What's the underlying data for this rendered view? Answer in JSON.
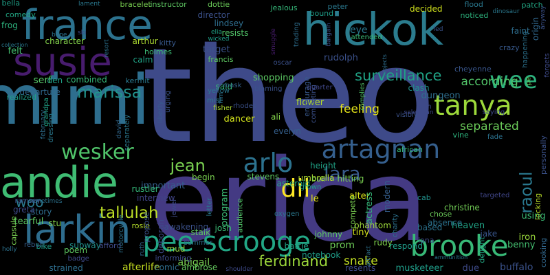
{
  "words": [
    {
      "text": "theo",
      "color": "#3e4a89",
      "rot": 0
    },
    {
      "text": "erica",
      "color": "#443a83",
      "rot": 0
    },
    {
      "text": "hickok",
      "color": "#2b7c8e",
      "rot": 0
    },
    {
      "text": "mimi",
      "color": "#2e6e8e",
      "rot": 0
    },
    {
      "text": "france",
      "color": "#2c728e",
      "rot": 0
    },
    {
      "text": "susie",
      "color": "#481c6e",
      "rot": 0
    },
    {
      "text": "andie",
      "color": "#3fbc73",
      "rot": 0
    },
    {
      "text": "larkin",
      "color": "#2e6d8e",
      "rot": 0
    },
    {
      "text": "pee scrooge",
      "color": "#22a785",
      "rot": 0
    },
    {
      "text": "brooke",
      "color": "#38b977",
      "rot": 0
    },
    {
      "text": "artagnan",
      "color": "#355f8d",
      "rot": 0
    },
    {
      "text": "tanya",
      "color": "#9dd93b",
      "rot": 0
    },
    {
      "text": "arlo",
      "color": "#2c728e",
      "rot": 0
    },
    {
      "text": "lara",
      "color": "#38598c",
      "rot": 0
    },
    {
      "text": "wee",
      "color": "#2db27d",
      "rot": 0
    },
    {
      "text": "dil",
      "color": "#fde725",
      "rot": 0
    },
    {
      "text": "wesker",
      "color": "#50c46a",
      "rot": 0
    },
    {
      "text": "marissa",
      "color": "#21918c",
      "rot": 0
    },
    {
      "text": "tallulah",
      "color": "#bddf26",
      "rot": 0
    },
    {
      "text": "jean",
      "color": "#7ad151",
      "rot": 0
    },
    {
      "text": "ferdinand",
      "color": "#9dd93b",
      "rot": 0
    },
    {
      "text": "surveillance",
      "color": "#20a386",
      "rot": 0
    },
    {
      "text": "raoul",
      "color": "#2a788e",
      "rot": -90
    },
    {
      "text": "woo",
      "color": "#2a788e",
      "rot": 0
    },
    {
      "text": "feeling",
      "color": "#e5e419",
      "rot": 0
    },
    {
      "text": "separated",
      "color": "#6ccd5a",
      "rot": 0
    },
    {
      "text": "according",
      "color": "#52c569",
      "rot": 0
    },
    {
      "text": "snake",
      "color": "#c2df23",
      "rot": 0
    },
    {
      "text": "alter",
      "color": "#d8e219",
      "rot": 0
    },
    {
      "text": "dungeon",
      "color": "#2e6e8e",
      "rot": 0
    },
    {
      "text": "clash",
      "color": "#21918c",
      "rot": 0
    },
    {
      "text": "rudolph",
      "color": "#3b518b",
      "rot": 0
    },
    {
      "text": "program",
      "color": "#3bbb75",
      "rot": -90
    },
    {
      "text": "actress",
      "color": "#35b779",
      "rot": -90
    },
    {
      "text": "flower",
      "color": "#b5de2b",
      "rot": 0
    },
    {
      "text": "shopping",
      "color": "#5cc863",
      "rot": 0
    },
    {
      "text": "said",
      "color": "#35b779",
      "rot": 0
    },
    {
      "text": "important",
      "color": "#355f8d",
      "rot": 0
    },
    {
      "text": "interview",
      "color": "#414487",
      "rot": 0
    },
    {
      "text": "prom",
      "color": "#6ece58",
      "rot": 0
    },
    {
      "text": "serf",
      "color": "#56c667",
      "rot": 0
    },
    {
      "text": "departure",
      "color": "#31688e",
      "rot": 0
    },
    {
      "text": "origin",
      "color": "#31688e",
      "rot": -90
    },
    {
      "text": "cheyenne",
      "color": "#39568c",
      "rot": 0
    },
    {
      "text": "decided",
      "color": "#d0e11c",
      "rot": 0
    },
    {
      "text": "eye",
      "color": "#2a788e",
      "rot": 0
    },
    {
      "text": "target",
      "color": "#3b528b",
      "rot": 0
    },
    {
      "text": "abigail",
      "color": "#7ad151",
      "rot": 0
    },
    {
      "text": "afterlife",
      "color": "#c8e020",
      "rot": 0
    },
    {
      "text": "musketeer",
      "color": "#1f9e89",
      "rot": 0
    },
    {
      "text": "buffalo",
      "color": "#3b528b",
      "rot": 0
    },
    {
      "text": "benny",
      "color": "#44bf70",
      "rot": 0
    },
    {
      "text": "iron",
      "color": "#9bd93c",
      "rot": 0
    },
    {
      "text": "tiny",
      "color": "#d2e21b",
      "rot": 0
    },
    {
      "text": "phantom",
      "color": "#9dd93b",
      "rot": 0
    },
    {
      "text": "heaven",
      "color": "#20a486",
      "rot": 0
    },
    {
      "text": "absence",
      "color": "#2c728e",
      "rot": 0
    },
    {
      "text": "christine",
      "color": "#73d056",
      "rot": 0
    },
    {
      "text": "rustler",
      "color": "#35b779",
      "rot": 0
    },
    {
      "text": "stalk",
      "color": "#5ec962",
      "rot": 0
    },
    {
      "text": "josh",
      "color": "#3bbb75",
      "rot": 0
    },
    {
      "text": "evelyn",
      "color": "#355f8d",
      "rot": 0
    },
    {
      "text": "stevens",
      "color": "#5ec962",
      "rot": 0
    },
    {
      "text": "umbrella",
      "color": "#addc30",
      "rot": 0
    },
    {
      "text": "height",
      "color": "#20a386",
      "rot": 0
    },
    {
      "text": "bull",
      "color": "#84d44b",
      "rot": 0
    },
    {
      "text": "hitting",
      "color": "#7ad151",
      "rot": 0
    },
    {
      "text": "rosie",
      "color": "#b5de2b",
      "rot": 0
    },
    {
      "text": "begin",
      "color": "#7ad151",
      "rot": 0
    },
    {
      "text": "ali",
      "color": "#84d44b",
      "rot": 0
    },
    {
      "text": "dancer",
      "color": "#d2e21b",
      "rot": 0
    },
    {
      "text": "le",
      "color": "#e5e419",
      "rot": 0
    },
    {
      "text": "lana",
      "color": "#3e4c8a",
      "rot": 0
    },
    {
      "text": "rudy",
      "color": "#7fd34e",
      "rot": 0
    },
    {
      "text": "based",
      "color": "#2c728e",
      "rot": 0
    },
    {
      "text": "mud",
      "color": "#93d741",
      "rot": 0
    },
    {
      "text": "comic",
      "color": "#2e6e8e",
      "rot": 0
    },
    {
      "text": "ambrose",
      "color": "#65cb5e",
      "rot": 0
    },
    {
      "text": "poem",
      "color": "#5ec962",
      "rot": 0
    },
    {
      "text": "subway",
      "color": "#21918c",
      "rot": 0
    },
    {
      "text": "bike",
      "color": "#1f9e89",
      "rot": 0
    },
    {
      "text": "afford",
      "color": "#3e4a89",
      "rot": 0
    },
    {
      "text": "notebook",
      "color": "#1f9e89",
      "rot": 0
    },
    {
      "text": "resents",
      "color": "#3e4a89",
      "rot": 0
    },
    {
      "text": "respond",
      "color": "#1f9e89",
      "rot": 0
    },
    {
      "text": "johnny",
      "color": "#5cc863",
      "rot": 0
    },
    {
      "text": "battle",
      "color": "#20a386",
      "rot": 0
    },
    {
      "text": "delight",
      "color": "#22a884",
      "rot": -90
    },
    {
      "text": "jake",
      "color": "#39568c",
      "rot": 0
    },
    {
      "text": "using",
      "color": "#3bbb75",
      "rot": 0
    },
    {
      "text": "cooking",
      "color": "#31688e",
      "rot": -90
    },
    {
      "text": "locking",
      "color": "#b8de29",
      "rot": -90
    },
    {
      "text": "personally",
      "color": "#3b528b",
      "rot": -90
    },
    {
      "text": "targeted",
      "color": "#404688",
      "rot": 0
    },
    {
      "text": "cab",
      "color": "#21918c",
      "rot": 0
    },
    {
      "text": "chose",
      "color": "#6ccd5a",
      "rot": 0
    },
    {
      "text": "vine",
      "color": "#2db27d",
      "rot": 0
    },
    {
      "text": "fade",
      "color": "#2c728e",
      "rot": 0
    },
    {
      "text": "african",
      "color": "#35b779",
      "rot": 0
    },
    {
      "text": "complies",
      "color": "#52c569",
      "rot": -90
    },
    {
      "text": "completing",
      "color": "#3b518b",
      "rot": -90
    },
    {
      "text": "encourage",
      "color": "#38598c",
      "rot": -90
    },
    {
      "text": "blaming",
      "color": "#3b518b",
      "rot": 0
    },
    {
      "text": "quarter",
      "color": "#404688",
      "rot": 0
    },
    {
      "text": "oscar",
      "color": "#3b518b",
      "rot": 0
    },
    {
      "text": "mask",
      "color": "#33638d",
      "rot": 0
    },
    {
      "text": "yellow",
      "color": "#2a788e",
      "rot": 0
    },
    {
      "text": "mist",
      "color": "#2a788e",
      "rot": 0
    },
    {
      "text": "film",
      "color": "#2c728e",
      "rot": -90
    },
    {
      "text": "fisher",
      "color": "#ad d830",
      "rot": 0
    },
    {
      "text": "rhodes",
      "color": "#3b518b",
      "rot": 0
    },
    {
      "text": "liberty",
      "color": "#38598c",
      "rot": -90
    },
    {
      "text": "urging",
      "color": "#3b528b",
      "rot": -90
    },
    {
      "text": "david",
      "color": "#31688e",
      "rot": -90
    },
    {
      "text": "separately",
      "color": "#2a788e",
      "rot": -90
    },
    {
      "text": "february",
      "color": "#2e6e8e",
      "rot": -90
    },
    {
      "text": "dressing",
      "color": "#2a788e",
      "rot": -90
    },
    {
      "text": "grandpa",
      "color": "#20a386",
      "rot": -90
    },
    {
      "text": "realized",
      "color": "#1f9e89",
      "rot": 0
    },
    {
      "text": "den",
      "color": "#1fa187",
      "rot": 0
    },
    {
      "text": "combined",
      "color": "#35b779",
      "rot": 0
    },
    {
      "text": "kermit",
      "color": "#2a788e",
      "rot": 0
    },
    {
      "text": "calm",
      "color": "#20a386",
      "rot": 0
    },
    {
      "text": "holmes",
      "color": "#3bbb75",
      "rot": 0
    },
    {
      "text": "francis",
      "color": "#5ec962",
      "rot": 0
    },
    {
      "text": "kitty",
      "color": "#38598c",
      "rot": 0
    },
    {
      "text": "arthur",
      "color": "#addc30",
      "rot": 0
    },
    {
      "text": "character",
      "color": "#84d44b",
      "rot": 0
    },
    {
      "text": "felt",
      "color": "#44bf70",
      "rot": 0
    },
    {
      "text": "collection",
      "color": "#2a788e",
      "rot": 0
    },
    {
      "text": "frog",
      "color": "#2db27d",
      "rot": 0
    },
    {
      "text": "comedy",
      "color": "#22a884",
      "rot": 0
    },
    {
      "text": "bella",
      "color": "#1fa187",
      "rot": 0
    },
    {
      "text": "bone",
      "color": "#2c728e",
      "rot": 0
    },
    {
      "text": "ski",
      "color": "#3e4a89",
      "rot": 0
    },
    {
      "text": "lament",
      "color": "#2a788e",
      "rot": 0
    },
    {
      "text": "bracelet",
      "color": "#7ad151",
      "rot": 0
    },
    {
      "text": "instructor",
      "color": "#5ec962",
      "rot": 0
    },
    {
      "text": "dottie",
      "color": "#6ccd5a",
      "rot": 0
    },
    {
      "text": "director",
      "color": "#3b518b",
      "rot": 0
    },
    {
      "text": "lindsey",
      "color": "#2e6e8e",
      "rot": 0
    },
    {
      "text": "resists",
      "color": "#52c569",
      "rot": 0
    },
    {
      "text": "elia",
      "color": "#20a386",
      "rot": 0
    },
    {
      "text": "wicked",
      "color": "#1f9e89",
      "rot": 0
    },
    {
      "text": "resort",
      "color": "#2c728e",
      "rot": -90
    },
    {
      "text": "jealous",
      "color": "#35b779",
      "rot": 0
    },
    {
      "text": "smuggle",
      "color": "#481c6e",
      "rot": -90
    },
    {
      "text": "trading",
      "color": "#2e6e8e",
      "rot": -90
    },
    {
      "text": "bound",
      "color": "#1f9e89",
      "rot": 0
    },
    {
      "text": "peter",
      "color": "#2a788e",
      "rot": 0
    },
    {
      "text": "bargain",
      "color": "#3b518b",
      "rot": -90
    },
    {
      "text": "attended",
      "color": "#3bbb75",
      "rot": 0
    },
    {
      "text": "fed",
      "color": "#3b528b",
      "rot": 0
    },
    {
      "text": "flood",
      "color": "#2a788e",
      "rot": 0
    },
    {
      "text": "patch",
      "color": "#22a884",
      "rot": 0
    },
    {
      "text": "dinosaur",
      "color": "#2a788e",
      "rot": 0
    },
    {
      "text": "noticed",
      "color": "#2db27d",
      "rot": 0
    },
    {
      "text": "faint",
      "color": "#2e6e8e",
      "rot": 0
    },
    {
      "text": "anyway",
      "color": "#3b528b",
      "rot": -90
    },
    {
      "text": "happening",
      "color": "#2c728e",
      "rot": -90
    },
    {
      "text": "crazy",
      "color": "#38598c",
      "rot": 0
    },
    {
      "text": "forgets",
      "color": "#3e4a89",
      "rot": -90
    },
    {
      "text": "pe",
      "color": "#6ccd5a",
      "rot": -90
    },
    {
      "text": "projects",
      "color": "#2e6e8e",
      "rot": -90
    },
    {
      "text": "john",
      "color": "#3e4a89",
      "rot": 0
    },
    {
      "text": "visibly",
      "color": "#3b528b",
      "rot": 0
    },
    {
      "text": "saying",
      "color": "#3e4a89",
      "rot": 0
    },
    {
      "text": "compete",
      "color": "#7ad151",
      "rot": -90
    },
    {
      "text": "modern",
      "color": "#355f8d",
      "rot": -90
    },
    {
      "text": "asteroid",
      "color": "#22a884",
      "rot": 0
    },
    {
      "text": "grown",
      "color": "#1fa187",
      "rot": 0
    },
    {
      "text": "audience",
      "color": "#52c569",
      "rot": -90
    },
    {
      "text": "charity",
      "color": "#2c728e",
      "rot": -90
    },
    {
      "text": "oxygen",
      "color": "#2a788e",
      "rot": 0
    },
    {
      "text": "propose",
      "color": "#3b518b",
      "rot": -90
    },
    {
      "text": "awakening",
      "color": "#3b518b",
      "rot": 0
    },
    {
      "text": "deborah",
      "color": "#3e4a89",
      "rot": -90
    },
    {
      "text": "informing",
      "color": "#3e4a89",
      "rot": 0
    },
    {
      "text": "summer",
      "color": "#2e6e8e",
      "rot": 0
    },
    {
      "text": "shoulder",
      "color": "#3e4a89",
      "rot": 0
    },
    {
      "text": "ruth",
      "color": "#31688e",
      "rot": -90
    },
    {
      "text": "capsule",
      "color": "#7ad151",
      "rot": -90
    },
    {
      "text": "badge",
      "color": "#3e4a89",
      "rot": 0
    },
    {
      "text": "strained",
      "color": "#2e6e8e",
      "rot": 0
    },
    {
      "text": "rebuff",
      "color": "#355f8d",
      "rot": 0
    },
    {
      "text": "holly",
      "color": "#2c728e",
      "rot": 0
    },
    {
      "text": "motorcycle",
      "color": "#2c728e",
      "rot": -90
    },
    {
      "text": "tearful",
      "color": "#5ec962",
      "rot": 0
    },
    {
      "text": "stu",
      "color": "#84d44b",
      "rot": 0
    },
    {
      "text": "story",
      "color": "#2e6e8e",
      "rot": 0
    },
    {
      "text": "greta",
      "color": "#3e4a89",
      "rot": 0
    },
    {
      "text": "ramsey",
      "color": "#3e4a89",
      "rot": 0
    },
    {
      "text": "sometimes",
      "color": "#2c728e",
      "rot": 0
    },
    {
      "text": "jewel",
      "color": "#3e4a89",
      "rot": -90
    },
    {
      "text": "letter",
      "color": "#2a788e",
      "rot": -90
    },
    {
      "text": "attract",
      "color": "#2c728e",
      "rot": -90
    },
    {
      "text": "salesman",
      "color": "#3e4a89",
      "rot": 0
    },
    {
      "text": "ammunition",
      "color": "#2a788e",
      "rot": 0
    },
    {
      "text": "due",
      "color": "#3e4a89",
      "rot": 0
    }
  ]
}
